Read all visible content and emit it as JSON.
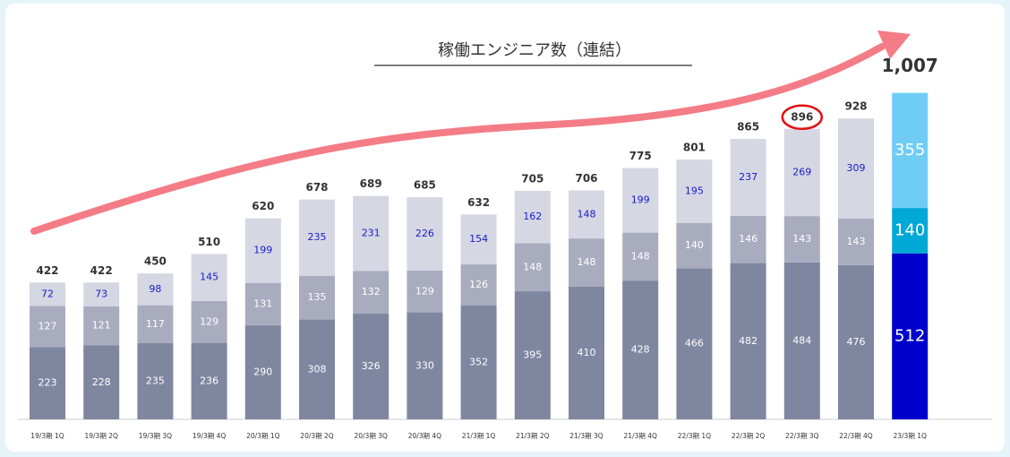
{
  "chart_data": {
    "type": "stacked_bar",
    "title": "稼働エンジニア数（連結）",
    "categories": [
      "19/3期 1Q",
      "19/3期 2Q",
      "19/3期 3Q",
      "19/3期 4Q",
      "20/3期 1Q",
      "20/3期 2Q",
      "20/3期 3Q",
      "20/3期 4Q",
      "21/3期 1Q",
      "21/3期 2Q",
      "21/3期 3Q",
      "21/3期 4Q",
      "22/3期 1Q",
      "22/3期 2Q",
      "22/3期 3Q",
      "22/3期 4Q",
      "23/3期 1Q"
    ],
    "series": [
      {
        "color": "#7f86a0",
        "highlight_color": "#0000cc",
        "values": [
          223,
          228,
          235,
          236,
          290,
          308,
          326,
          330,
          352,
          395,
          410,
          428,
          466,
          482,
          484,
          476,
          512
        ]
      },
      {
        "color": "#a9acbf",
        "highlight_color": "#00a8d6",
        "values": [
          127,
          121,
          117,
          129,
          131,
          135,
          132,
          129,
          126,
          148,
          148,
          148,
          140,
          146,
          143,
          143,
          140
        ]
      },
      {
        "color": "#d5d7e3",
        "highlight_color": "#6fcdf5",
        "values": [
          72,
          73,
          98,
          145,
          199,
          235,
          231,
          226,
          154,
          162,
          148,
          199,
          195,
          237,
          269,
          309,
          355
        ]
      }
    ],
    "totals": {
      "values": [
        422,
        422,
        450,
        510,
        620,
        678,
        689,
        685,
        632,
        705,
        706,
        775,
        801,
        865,
        896,
        928,
        1007
      ],
      "value_labels": [
        "422",
        "422",
        "450",
        "510",
        "620",
        "678",
        "689",
        "685",
        "632",
        "705",
        "706",
        "775",
        "801",
        "865",
        "896",
        "928",
        "1,007"
      ]
    },
    "highlight_index": 16,
    "circled_index": 14,
    "ylim": [
      0,
      1100
    ]
  }
}
